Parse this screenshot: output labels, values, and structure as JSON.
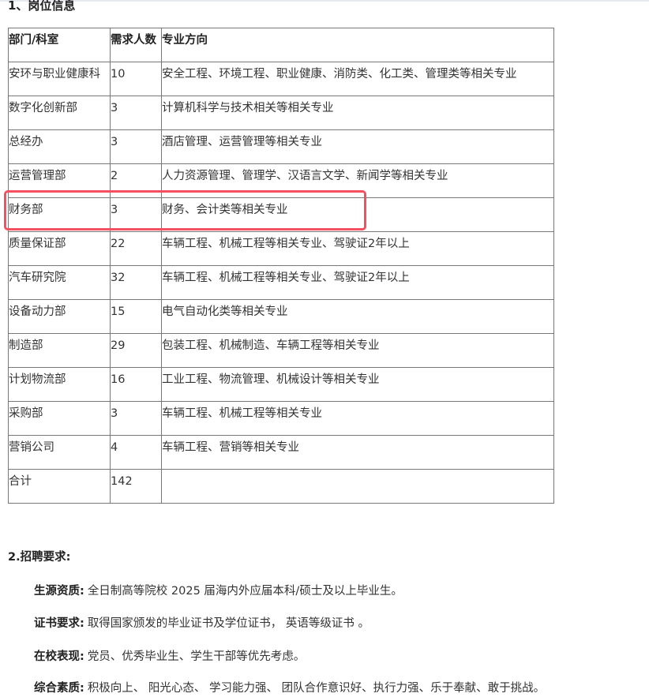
{
  "section1_title": "1、岗位信息",
  "table": {
    "headers": [
      "部门/科室",
      "需求人数",
      "专业方向"
    ],
    "rows": [
      [
        "安环与职业健康科",
        "10",
        "安全工程、环境工程、职业健康、消防类、化工类、管理类等相关专业"
      ],
      [
        "数字化创新部",
        "3",
        "计算机科学与技术相关等相关专业"
      ],
      [
        "总经办",
        "3",
        "酒店管理、运营管理等相关专业"
      ],
      [
        "运营管理部",
        "2",
        "人力资源管理、管理学、汉语言文学、新闻学等相关专业"
      ],
      [
        "财务部",
        "3",
        "财务、会计类等相关专业"
      ],
      [
        "质量保证部",
        "22",
        "车辆工程、机械工程等相关专业、驾驶证2年以上"
      ],
      [
        "汽车研究院",
        "32",
        "车辆工程、机械工程等相关专业、驾驶证2年以上"
      ],
      [
        "设备动力部",
        "15",
        "电气自动化类等相关专业"
      ],
      [
        "制造部",
        "29",
        "包装工程、机械制造、车辆工程等相关专业"
      ],
      [
        "计划物流部",
        "16",
        "工业工程、物流管理、机械设计等相关专业"
      ],
      [
        "采购部",
        "3",
        "车辆工程、机械工程等相关专业"
      ],
      [
        "营销公司",
        "4",
        "车辆工程、营销等相关专业"
      ],
      [
        "合计",
        "142",
        ""
      ]
    ],
    "highlighted_row": "财务部",
    "highlight_color": "#f4505f"
  },
  "section2_title": "2.招聘要求:",
  "requirements": [
    {
      "label": "生源资质:",
      "text": "全日制高等院校 2025 届海内外应届本科/硕士及以上毕业生。"
    },
    {
      "label": "证书要求:",
      "text": "取得国家颁发的毕业证书及学位证书， 英语等级证书 。"
    },
    {
      "label": "在校表现:",
      "text": "党员、优秀毕业生、学生干部等优先考虑。"
    },
    {
      "label": "综合素质:",
      "text": "积极向上、 阳光心态、 学习能力强、 团队合作意识好、执行力强、乐于奉献、敢于挑战。"
    }
  ]
}
